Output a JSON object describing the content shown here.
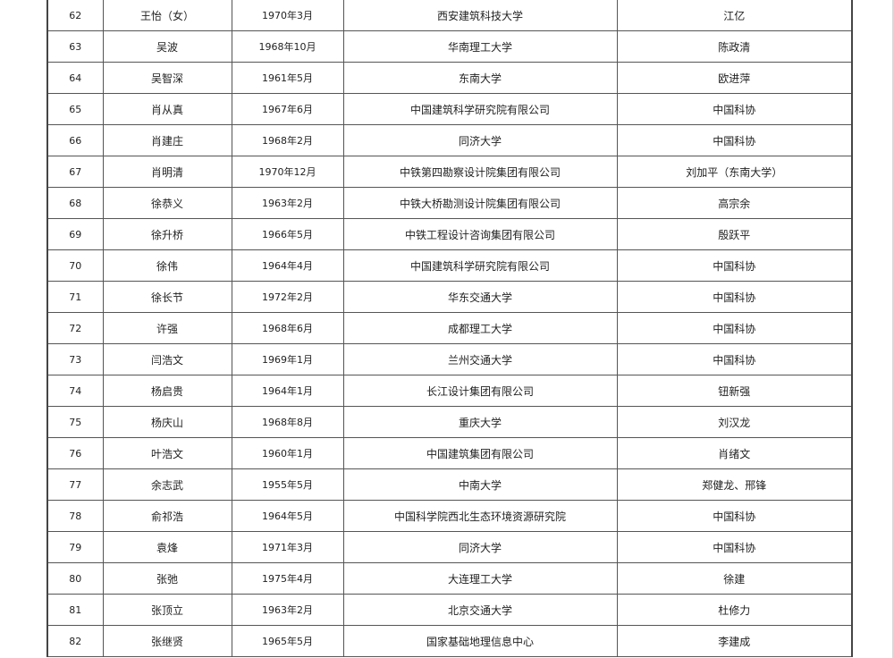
{
  "rows": [
    {
      "no": "62",
      "name": "王怡（女）",
      "birth": "1970年3月",
      "org": "西安建筑科技大学",
      "nominator": "江亿"
    },
    {
      "no": "63",
      "name": "吴波",
      "birth": "1968年10月",
      "org": "华南理工大学",
      "nominator": "陈政清"
    },
    {
      "no": "64",
      "name": "吴智深",
      "birth": "1961年5月",
      "org": "东南大学",
      "nominator": "欧进萍"
    },
    {
      "no": "65",
      "name": "肖从真",
      "birth": "1967年6月",
      "org": "中国建筑科学研究院有限公司",
      "nominator": "中国科协"
    },
    {
      "no": "66",
      "name": "肖建庄",
      "birth": "1968年2月",
      "org": "同济大学",
      "nominator": "中国科协"
    },
    {
      "no": "67",
      "name": "肖明清",
      "birth": "1970年12月",
      "org": "中铁第四勘察设计院集团有限公司",
      "nominator": "刘加平（东南大学）"
    },
    {
      "no": "68",
      "name": "徐恭义",
      "birth": "1963年2月",
      "org": "中铁大桥勘测设计院集团有限公司",
      "nominator": "高宗余"
    },
    {
      "no": "69",
      "name": "徐升桥",
      "birth": "1966年5月",
      "org": "中铁工程设计咨询集团有限公司",
      "nominator": "殷跃平"
    },
    {
      "no": "70",
      "name": "徐伟",
      "birth": "1964年4月",
      "org": "中国建筑科学研究院有限公司",
      "nominator": "中国科协"
    },
    {
      "no": "71",
      "name": "徐长节",
      "birth": "1972年2月",
      "org": "华东交通大学",
      "nominator": "中国科协"
    },
    {
      "no": "72",
      "name": "许强",
      "birth": "1968年6月",
      "org": "成都理工大学",
      "nominator": "中国科协"
    },
    {
      "no": "73",
      "name": "闫浩文",
      "birth": "1969年1月",
      "org": "兰州交通大学",
      "nominator": "中国科协"
    },
    {
      "no": "74",
      "name": "杨启贵",
      "birth": "1964年1月",
      "org": "长江设计集团有限公司",
      "nominator": "钮新强"
    },
    {
      "no": "75",
      "name": "杨庆山",
      "birth": "1968年8月",
      "org": "重庆大学",
      "nominator": "刘汉龙"
    },
    {
      "no": "76",
      "name": "叶浩文",
      "birth": "1960年1月",
      "org": "中国建筑集团有限公司",
      "nominator": "肖绪文"
    },
    {
      "no": "77",
      "name": "余志武",
      "birth": "1955年5月",
      "org": "中南大学",
      "nominator": "郑健龙、邢锋"
    },
    {
      "no": "78",
      "name": "俞祁浩",
      "birth": "1964年5月",
      "org": "中国科学院西北生态环境资源研究院",
      "nominator": "中国科协"
    },
    {
      "no": "79",
      "name": "袁烽",
      "birth": "1971年3月",
      "org": "同济大学",
      "nominator": "中国科协"
    },
    {
      "no": "80",
      "name": "张弛",
      "birth": "1975年4月",
      "org": "大连理工大学",
      "nominator": "徐建"
    },
    {
      "no": "81",
      "name": "张顶立",
      "birth": "1963年2月",
      "org": "北京交通大学",
      "nominator": "杜修力"
    },
    {
      "no": "82",
      "name": "张继贤",
      "birth": "1965年5月",
      "org": "国家基础地理信息中心",
      "nominator": "李建成"
    }
  ]
}
